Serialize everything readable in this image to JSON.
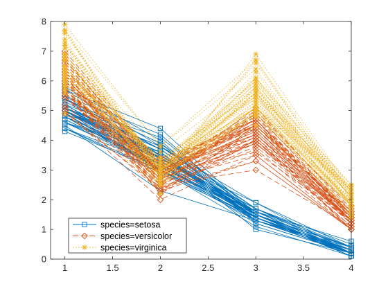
{
  "chart_data": {
    "type": "line",
    "title": "",
    "xlabel": "",
    "ylabel": "",
    "x": [
      1,
      2,
      3,
      4
    ],
    "xlim": [
      0.85,
      4.0
    ],
    "ylim": [
      0,
      8
    ],
    "xticks": [
      1,
      1.5,
      2,
      2.5,
      3,
      3.5,
      4
    ],
    "xtick_labels": [
      "1",
      "1.5",
      "2",
      "2.5",
      "3",
      "3.5",
      "4"
    ],
    "yticks": [
      0,
      1,
      2,
      3,
      4,
      5,
      6,
      7,
      8
    ],
    "ytick_labels": [
      "0",
      "1",
      "2",
      "3",
      "4",
      "5",
      "6",
      "7",
      "8"
    ],
    "grid": false,
    "legend_position": "bottom-left",
    "series": [
      {
        "name": "species=setosa",
        "color": "#0072BD",
        "line_style": "solid",
        "marker": "square",
        "lines": [
          [
            5.1,
            3.5,
            1.4,
            0.2
          ],
          [
            4.9,
            3.0,
            1.4,
            0.2
          ],
          [
            4.7,
            3.2,
            1.3,
            0.2
          ],
          [
            4.6,
            3.1,
            1.5,
            0.2
          ],
          [
            5.0,
            3.6,
            1.4,
            0.2
          ],
          [
            5.4,
            3.9,
            1.7,
            0.4
          ],
          [
            4.6,
            3.4,
            1.4,
            0.3
          ],
          [
            5.0,
            3.4,
            1.5,
            0.2
          ],
          [
            4.4,
            2.9,
            1.4,
            0.2
          ],
          [
            4.9,
            3.1,
            1.5,
            0.1
          ],
          [
            5.4,
            3.7,
            1.5,
            0.2
          ],
          [
            4.8,
            3.4,
            1.6,
            0.2
          ],
          [
            4.8,
            3.0,
            1.4,
            0.1
          ],
          [
            4.3,
            3.0,
            1.1,
            0.1
          ],
          [
            5.8,
            4.0,
            1.2,
            0.2
          ],
          [
            5.7,
            4.4,
            1.5,
            0.4
          ],
          [
            5.4,
            3.9,
            1.3,
            0.4
          ],
          [
            5.1,
            3.5,
            1.4,
            0.3
          ],
          [
            5.7,
            3.8,
            1.7,
            0.3
          ],
          [
            5.1,
            3.8,
            1.5,
            0.3
          ],
          [
            5.4,
            3.4,
            1.7,
            0.2
          ],
          [
            5.1,
            3.7,
            1.5,
            0.4
          ],
          [
            4.6,
            3.6,
            1.0,
            0.2
          ],
          [
            5.1,
            3.3,
            1.7,
            0.5
          ],
          [
            4.8,
            3.4,
            1.9,
            0.2
          ],
          [
            5.0,
            3.0,
            1.6,
            0.2
          ],
          [
            5.0,
            3.4,
            1.6,
            0.4
          ],
          [
            5.2,
            3.5,
            1.5,
            0.2
          ],
          [
            5.2,
            3.4,
            1.4,
            0.2
          ],
          [
            4.7,
            3.2,
            1.6,
            0.2
          ],
          [
            4.8,
            3.1,
            1.6,
            0.2
          ],
          [
            5.4,
            3.4,
            1.5,
            0.4
          ],
          [
            5.2,
            4.1,
            1.5,
            0.1
          ],
          [
            5.5,
            4.2,
            1.4,
            0.2
          ],
          [
            4.9,
            3.1,
            1.5,
            0.2
          ],
          [
            5.0,
            3.2,
            1.2,
            0.2
          ],
          [
            5.5,
            3.5,
            1.3,
            0.2
          ],
          [
            4.9,
            3.6,
            1.4,
            0.1
          ],
          [
            4.4,
            3.0,
            1.3,
            0.2
          ],
          [
            5.1,
            3.4,
            1.5,
            0.2
          ],
          [
            5.0,
            3.5,
            1.3,
            0.3
          ],
          [
            4.5,
            2.3,
            1.3,
            0.3
          ],
          [
            4.4,
            3.2,
            1.3,
            0.2
          ],
          [
            5.0,
            3.5,
            1.6,
            0.6
          ],
          [
            5.1,
            3.8,
            1.9,
            0.4
          ],
          [
            4.8,
            3.0,
            1.4,
            0.3
          ],
          [
            5.1,
            3.8,
            1.6,
            0.2
          ],
          [
            4.6,
            3.2,
            1.4,
            0.2
          ],
          [
            5.3,
            3.7,
            1.5,
            0.2
          ],
          [
            5.0,
            3.3,
            1.4,
            0.2
          ]
        ]
      },
      {
        "name": "species=versicolor",
        "color": "#D95319",
        "line_style": "dashed",
        "marker": "diamond",
        "lines": [
          [
            7.0,
            3.2,
            4.7,
            1.4
          ],
          [
            6.4,
            3.2,
            4.5,
            1.5
          ],
          [
            6.9,
            3.1,
            4.9,
            1.5
          ],
          [
            5.5,
            2.3,
            4.0,
            1.3
          ],
          [
            6.5,
            2.8,
            4.6,
            1.5
          ],
          [
            5.7,
            2.8,
            4.5,
            1.3
          ],
          [
            6.3,
            3.3,
            4.7,
            1.6
          ],
          [
            4.9,
            2.4,
            3.3,
            1.0
          ],
          [
            6.6,
            2.9,
            4.6,
            1.3
          ],
          [
            5.2,
            2.7,
            3.9,
            1.4
          ],
          [
            5.0,
            2.0,
            3.5,
            1.0
          ],
          [
            5.9,
            3.0,
            4.2,
            1.5
          ],
          [
            6.0,
            2.2,
            4.0,
            1.0
          ],
          [
            6.1,
            2.9,
            4.7,
            1.4
          ],
          [
            5.6,
            2.9,
            3.6,
            1.3
          ],
          [
            6.7,
            3.1,
            4.4,
            1.4
          ],
          [
            5.6,
            3.0,
            4.5,
            1.5
          ],
          [
            5.8,
            2.7,
            4.1,
            1.0
          ],
          [
            6.2,
            2.2,
            4.5,
            1.5
          ],
          [
            5.6,
            2.5,
            3.9,
            1.1
          ],
          [
            5.9,
            3.2,
            4.8,
            1.8
          ],
          [
            6.1,
            2.8,
            4.0,
            1.3
          ],
          [
            6.3,
            2.5,
            4.9,
            1.5
          ],
          [
            6.1,
            2.8,
            4.7,
            1.2
          ],
          [
            6.4,
            2.9,
            4.3,
            1.3
          ],
          [
            6.6,
            3.0,
            4.4,
            1.4
          ],
          [
            6.8,
            2.8,
            4.8,
            1.4
          ],
          [
            6.7,
            3.0,
            5.0,
            1.7
          ],
          [
            6.0,
            2.9,
            4.5,
            1.5
          ],
          [
            5.7,
            2.6,
            3.5,
            1.0
          ],
          [
            5.5,
            2.4,
            3.8,
            1.1
          ],
          [
            5.5,
            2.4,
            3.7,
            1.0
          ],
          [
            5.8,
            2.7,
            3.9,
            1.2
          ],
          [
            6.0,
            2.7,
            5.1,
            1.6
          ],
          [
            5.4,
            3.0,
            4.5,
            1.5
          ],
          [
            6.0,
            3.4,
            4.5,
            1.6
          ],
          [
            6.7,
            3.1,
            4.7,
            1.5
          ],
          [
            6.3,
            2.3,
            4.4,
            1.3
          ],
          [
            5.6,
            3.0,
            4.1,
            1.3
          ],
          [
            5.5,
            2.5,
            4.0,
            1.3
          ],
          [
            5.5,
            2.6,
            4.4,
            1.2
          ],
          [
            6.1,
            3.0,
            4.6,
            1.4
          ],
          [
            5.8,
            2.6,
            4.0,
            1.2
          ],
          [
            5.0,
            2.3,
            3.3,
            1.0
          ],
          [
            5.6,
            2.7,
            4.2,
            1.3
          ],
          [
            5.7,
            3.0,
            4.2,
            1.2
          ],
          [
            5.7,
            2.9,
            4.2,
            1.3
          ],
          [
            6.2,
            2.9,
            4.3,
            1.3
          ],
          [
            5.1,
            2.5,
            3.0,
            1.1
          ],
          [
            5.7,
            2.8,
            4.1,
            1.3
          ]
        ]
      },
      {
        "name": "species=virginica",
        "color": "#EDB120",
        "line_style": "dotted",
        "marker": "asterisk",
        "lines": [
          [
            6.3,
            3.3,
            6.0,
            2.5
          ],
          [
            5.8,
            2.7,
            5.1,
            1.9
          ],
          [
            7.1,
            3.0,
            5.9,
            2.1
          ],
          [
            6.3,
            2.9,
            5.6,
            1.8
          ],
          [
            6.5,
            3.0,
            5.8,
            2.2
          ],
          [
            7.6,
            3.0,
            6.6,
            2.1
          ],
          [
            4.9,
            2.5,
            4.5,
            1.7
          ],
          [
            7.3,
            2.9,
            6.3,
            1.8
          ],
          [
            6.7,
            2.5,
            5.8,
            1.8
          ],
          [
            7.2,
            3.6,
            6.1,
            2.5
          ],
          [
            6.5,
            3.2,
            5.1,
            2.0
          ],
          [
            6.4,
            2.7,
            5.3,
            1.9
          ],
          [
            6.8,
            3.0,
            5.5,
            2.1
          ],
          [
            5.7,
            2.5,
            5.0,
            2.0
          ],
          [
            5.8,
            2.8,
            5.1,
            2.4
          ],
          [
            6.4,
            3.2,
            5.3,
            2.3
          ],
          [
            6.5,
            3.0,
            5.5,
            1.8
          ],
          [
            7.7,
            3.8,
            6.7,
            2.2
          ],
          [
            7.7,
            2.6,
            6.9,
            2.3
          ],
          [
            6.0,
            2.2,
            5.0,
            1.5
          ],
          [
            6.9,
            3.2,
            5.7,
            2.3
          ],
          [
            5.6,
            2.8,
            4.9,
            2.0
          ],
          [
            7.7,
            2.8,
            6.7,
            2.0
          ],
          [
            6.3,
            2.7,
            4.9,
            1.8
          ],
          [
            6.7,
            3.3,
            5.7,
            2.1
          ],
          [
            7.2,
            3.2,
            6.0,
            1.8
          ],
          [
            6.2,
            2.8,
            4.8,
            1.8
          ],
          [
            6.1,
            3.0,
            4.9,
            1.8
          ],
          [
            6.4,
            2.8,
            5.6,
            2.1
          ],
          [
            7.2,
            3.0,
            5.8,
            1.6
          ],
          [
            7.4,
            2.8,
            6.1,
            1.9
          ],
          [
            7.9,
            3.8,
            6.4,
            2.0
          ],
          [
            6.4,
            2.8,
            5.6,
            2.2
          ],
          [
            6.3,
            2.8,
            5.1,
            1.5
          ],
          [
            6.1,
            2.6,
            5.6,
            1.4
          ],
          [
            7.7,
            3.0,
            6.1,
            2.3
          ],
          [
            6.3,
            3.4,
            5.6,
            2.4
          ],
          [
            6.4,
            3.1,
            5.5,
            1.8
          ],
          [
            6.0,
            3.0,
            4.8,
            1.8
          ],
          [
            6.9,
            3.1,
            5.4,
            2.1
          ],
          [
            6.7,
            3.1,
            5.6,
            2.4
          ],
          [
            6.9,
            3.1,
            5.1,
            2.3
          ],
          [
            5.8,
            2.7,
            5.1,
            1.9
          ],
          [
            6.8,
            3.2,
            5.9,
            2.3
          ],
          [
            6.7,
            3.3,
            5.7,
            2.5
          ],
          [
            6.7,
            3.0,
            5.2,
            2.3
          ],
          [
            6.3,
            2.5,
            5.0,
            1.9
          ],
          [
            6.5,
            3.0,
            5.2,
            2.0
          ],
          [
            6.2,
            3.4,
            5.4,
            2.3
          ],
          [
            5.9,
            3.0,
            5.1,
            1.8
          ]
        ]
      }
    ]
  }
}
